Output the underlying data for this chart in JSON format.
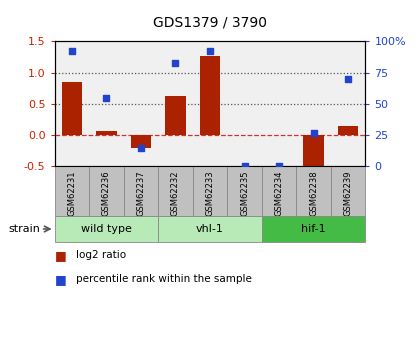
{
  "title": "GDS1379 / 3790",
  "samples": [
    "GSM62231",
    "GSM62236",
    "GSM62237",
    "GSM62232",
    "GSM62233",
    "GSM62235",
    "GSM62234",
    "GSM62238",
    "GSM62239"
  ],
  "log2_ratio": [
    0.85,
    0.07,
    -0.2,
    0.63,
    1.27,
    0.0,
    0.0,
    -0.55,
    0.15
  ],
  "percentile_rank": [
    92,
    55,
    15,
    83,
    92,
    0,
    0,
    27,
    70
  ],
  "groups": [
    {
      "label": "wild type",
      "start": 0,
      "end": 3,
      "color": "#b8eab8"
    },
    {
      "label": "vhl-1",
      "start": 3,
      "end": 6,
      "color": "#b8eab8"
    },
    {
      "label": "hif-1",
      "start": 6,
      "end": 9,
      "color": "#44bb44"
    }
  ],
  "strain_label": "strain",
  "ylim_left": [
    -0.5,
    1.5
  ],
  "ylim_right": [
    0,
    100
  ],
  "yticks_left": [
    -0.5,
    0.0,
    0.5,
    1.0,
    1.5
  ],
  "yticks_right": [
    0,
    25,
    50,
    75,
    100
  ],
  "ytick_right_labels": [
    "0",
    "25",
    "50",
    "75",
    "100%"
  ],
  "hlines": [
    0.0,
    0.5,
    1.0
  ],
  "hline_styles": [
    "--",
    ":",
    ":"
  ],
  "hline_colors": [
    "#cc3333",
    "#555555",
    "#555555"
  ],
  "bar_color": "#aa2200",
  "scatter_color": "#2244cc",
  "bar_width": 0.6,
  "background_plot": "#f0f0f0",
  "background_sample": "#c0c0c0",
  "legend_log2": "log2 ratio",
  "legend_pct": "percentile rank within the sample",
  "left_tick_color": "#cc2200",
  "right_tick_color": "#2244cc"
}
